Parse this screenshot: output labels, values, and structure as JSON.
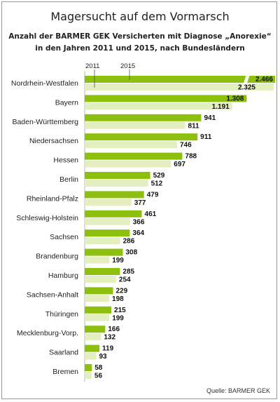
{
  "title": "Magersucht auf dem Vormarsch",
  "subtitle_line1": "Anzahl der BARMER GEK Versicherten mit Diagnose „Anorexie“",
  "subtitle_line2": "in den Jahren 2011 und 2015, nach Bundesländern",
  "source": "Quelle: BARMER GEK",
  "colors": {
    "series_2015": "#8dbf0f",
    "series_2011": "#e3efbf"
  },
  "chart_data": {
    "type": "bar",
    "orientation": "horizontal",
    "categories": [
      "Nordrhein-Westfalen",
      "Bayern",
      "Baden-Württemberg",
      "Niedersachsen",
      "Hessen",
      "Berlin",
      "Rheinland-Pfalz",
      "Schleswig-Holstein",
      "Sachsen",
      "Brandenburg",
      "Hamburg",
      "Sachsen-Anhalt",
      "Thüringen",
      "Mecklenburg-Vorp.",
      "Saarland",
      "Bremen"
    ],
    "series": [
      {
        "name": "2015",
        "values": [
          2466,
          1308,
          941,
          911,
          788,
          529,
          479,
          461,
          364,
          308,
          285,
          229,
          215,
          166,
          119,
          58
        ],
        "labels": [
          "2.466",
          "1.308",
          "941",
          "911",
          "788",
          "529",
          "479",
          "461",
          "364",
          "308",
          "285",
          "229",
          "215",
          "166",
          "119",
          "58"
        ]
      },
      {
        "name": "2011",
        "values": [
          2325,
          1191,
          811,
          746,
          697,
          512,
          377,
          366,
          286,
          199,
          254,
          198,
          199,
          132,
          93,
          56
        ],
        "labels": [
          "2.325",
          "1.191",
          "811",
          "746",
          "697",
          "512",
          "377",
          "366",
          "286",
          "199",
          "254",
          "198",
          "199",
          "132",
          "93",
          "56"
        ]
      }
    ],
    "axis_break": true,
    "legend_placement": "top-left"
  }
}
